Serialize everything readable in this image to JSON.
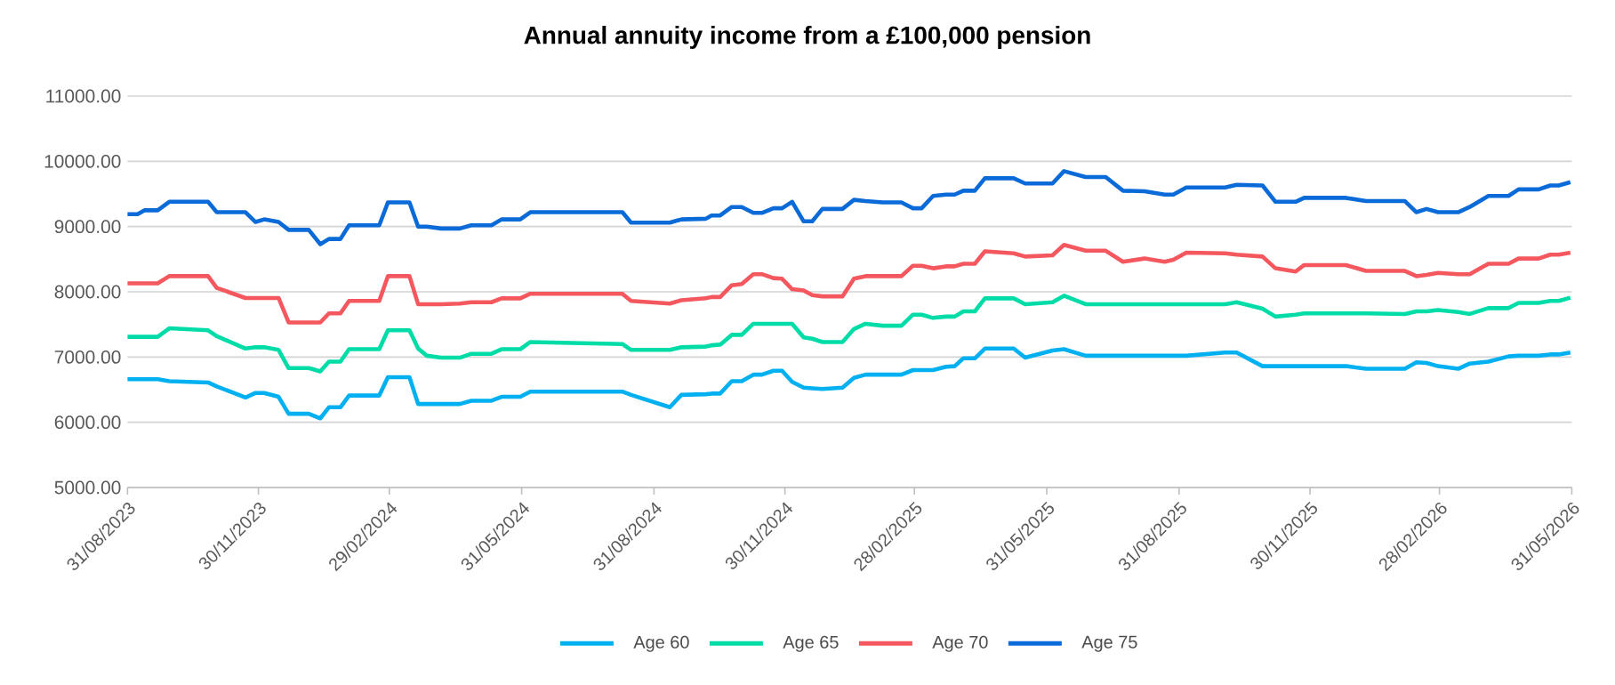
{
  "chart_data": {
    "type": "line",
    "title": "Annual annuity income from a £100,000 pension",
    "x": [
      "2023-08-31",
      "2023-09-07",
      "2023-09-12",
      "2023-09-21",
      "2023-09-29",
      "2023-10-26",
      "2023-11-01",
      "2023-11-21",
      "2023-11-28",
      "2023-12-04",
      "2023-12-14",
      "2023-12-21",
      "2024-01-04",
      "2024-01-12",
      "2024-01-18",
      "2024-01-26",
      "2024-02-01",
      "2024-02-22",
      "2024-02-28",
      "2024-03-14",
      "2024-03-20",
      "2024-03-26",
      "2024-04-05",
      "2024-04-18",
      "2024-04-26",
      "2024-05-10",
      "2024-05-17",
      "2024-05-30",
      "2024-06-06",
      "2024-08-09",
      "2024-08-15",
      "2024-09-11",
      "2024-09-19",
      "2024-10-06",
      "2024-10-10",
      "2024-10-16",
      "2024-10-24",
      "2024-10-31",
      "2024-11-08",
      "2024-11-14",
      "2024-11-22",
      "2024-11-28",
      "2024-12-05",
      "2024-12-13",
      "2024-12-19",
      "2024-12-26",
      "2025-01-09",
      "2025-01-17",
      "2025-01-25",
      "2025-02-06",
      "2025-02-19",
      "2025-02-27",
      "2025-03-05",
      "2025-03-13",
      "2025-03-22",
      "2025-03-28",
      "2025-04-03",
      "2025-04-11",
      "2025-04-18",
      "2025-05-08",
      "2025-05-16",
      "2025-06-04",
      "2025-06-12",
      "2025-06-27",
      "2025-07-11",
      "2025-07-23",
      "2025-08-07",
      "2025-08-21",
      "2025-08-27",
      "2025-09-05",
      "2025-10-02",
      "2025-10-10",
      "2025-10-28",
      "2025-11-06",
      "2025-11-20",
      "2025-11-26",
      "2025-12-25",
      "2026-01-08",
      "2026-02-04",
      "2026-02-12",
      "2026-02-19",
      "2026-02-27",
      "2026-03-13",
      "2026-03-21",
      "2026-04-03",
      "2026-04-17",
      "2026-04-24",
      "2026-05-08",
      "2026-05-16",
      "2026-05-22",
      "2026-05-30"
    ],
    "series": [
      {
        "name": "Age 60",
        "color": "#00b0f0",
        "values": [
          6660,
          6660,
          6660,
          6660,
          6630,
          6610,
          6550,
          6380,
          6450,
          6450,
          6390,
          6130,
          6130,
          6060,
          6230,
          6230,
          6410,
          6410,
          6690,
          6690,
          6280,
          6280,
          6280,
          6280,
          6330,
          6330,
          6390,
          6390,
          6470,
          6470,
          6420,
          6230,
          6420,
          6430,
          6440,
          6440,
          6630,
          6630,
          6730,
          6730,
          6790,
          6790,
          6620,
          6530,
          6520,
          6510,
          6530,
          6680,
          6730,
          6730,
          6730,
          6800,
          6800,
          6800,
          6850,
          6860,
          6980,
          6980,
          7130,
          7130,
          6990,
          7100,
          7120,
          7020,
          7020,
          7020,
          7020,
          7020,
          7020,
          7020,
          7070,
          7070,
          6860,
          6860,
          6860,
          6860,
          6860,
          6820,
          6820,
          6920,
          6910,
          6860,
          6820,
          6900,
          6930,
          7010,
          7020,
          7020,
          7040,
          7040,
          7070
        ]
      },
      {
        "name": "Age 65",
        "color": "#00dca8",
        "values": [
          7310,
          7310,
          7310,
          7310,
          7440,
          7410,
          7320,
          7130,
          7150,
          7150,
          7110,
          6830,
          6830,
          6780,
          6930,
          6930,
          7120,
          7120,
          7410,
          7410,
          7130,
          7020,
          6990,
          6990,
          7050,
          7050,
          7120,
          7120,
          7230,
          7200,
          7110,
          7110,
          7150,
          7160,
          7180,
          7190,
          7340,
          7340,
          7510,
          7510,
          7510,
          7510,
          7510,
          7300,
          7280,
          7230,
          7230,
          7430,
          7510,
          7480,
          7480,
          7650,
          7650,
          7600,
          7620,
          7620,
          7700,
          7700,
          7900,
          7900,
          7810,
          7840,
          7940,
          7810,
          7810,
          7810,
          7810,
          7810,
          7810,
          7810,
          7810,
          7840,
          7740,
          7620,
          7650,
          7670,
          7670,
          7670,
          7660,
          7700,
          7700,
          7720,
          7690,
          7660,
          7750,
          7750,
          7830,
          7830,
          7860,
          7860,
          7910
        ]
      },
      {
        "name": "Age 70",
        "color": "#f4585e",
        "values": [
          8130,
          8130,
          8130,
          8130,
          8240,
          8240,
          8060,
          7905,
          7905,
          7905,
          7905,
          7530,
          7530,
          7530,
          7670,
          7670,
          7860,
          7860,
          8240,
          8240,
          7810,
          7810,
          7810,
          7820,
          7840,
          7840,
          7900,
          7900,
          7970,
          7970,
          7860,
          7820,
          7870,
          7900,
          7920,
          7920,
          8100,
          8120,
          8270,
          8270,
          8210,
          8200,
          8040,
          8020,
          7950,
          7930,
          7930,
          8200,
          8240,
          8240,
          8240,
          8400,
          8400,
          8360,
          8390,
          8390,
          8430,
          8430,
          8620,
          8590,
          8540,
          8560,
          8720,
          8630,
          8630,
          8460,
          8510,
          8460,
          8490,
          8600,
          8590,
          8570,
          8540,
          8360,
          8310,
          8410,
          8410,
          8320,
          8320,
          8240,
          8260,
          8290,
          8270,
          8270,
          8430,
          8430,
          8510,
          8510,
          8570,
          8570,
          8600
        ]
      },
      {
        "name": "Age 75",
        "color": "#0a6ad8",
        "values": [
          9190,
          9190,
          9250,
          9250,
          9380,
          9380,
          9220,
          9220,
          9070,
          9110,
          9070,
          8950,
          8950,
          8730,
          8810,
          8810,
          9020,
          9020,
          9370,
          9370,
          9000,
          9000,
          8970,
          8970,
          9020,
          9020,
          9110,
          9110,
          9220,
          9220,
          9060,
          9060,
          9110,
          9120,
          9170,
          9170,
          9300,
          9300,
          9210,
          9210,
          9280,
          9280,
          9380,
          9080,
          9080,
          9270,
          9270,
          9410,
          9390,
          9370,
          9370,
          9280,
          9280,
          9470,
          9490,
          9490,
          9550,
          9550,
          9740,
          9740,
          9660,
          9660,
          9850,
          9760,
          9760,
          9550,
          9540,
          9490,
          9490,
          9600,
          9600,
          9640,
          9630,
          9380,
          9380,
          9440,
          9440,
          9390,
          9390,
          9220,
          9270,
          9220,
          9220,
          9300,
          9470,
          9470,
          9570,
          9570,
          9630,
          9630,
          9680
        ]
      }
    ],
    "xlim": [
      "2023-08-31",
      "2026-05-31"
    ],
    "xticks": [
      {
        "value": "2023-08-31",
        "label": "31/08/2023"
      },
      {
        "value": "2023-11-30",
        "label": "30/11/2023"
      },
      {
        "value": "2024-02-29",
        "label": "29/02/2024"
      },
      {
        "value": "2024-05-31",
        "label": "31/05/2024"
      },
      {
        "value": "2024-08-31",
        "label": "31/08/2024"
      },
      {
        "value": "2024-11-30",
        "label": "30/11/2024"
      },
      {
        "value": "2025-02-28",
        "label": "28/02/2025"
      },
      {
        "value": "2025-05-31",
        "label": "31/05/2025"
      },
      {
        "value": "2025-08-31",
        "label": "31/08/2025"
      },
      {
        "value": "2025-11-30",
        "label": "30/11/2025"
      },
      {
        "value": "2026-02-28",
        "label": "28/02/2026"
      },
      {
        "value": "2026-05-31",
        "label": "31/05/2026"
      }
    ],
    "ylim": [
      5000,
      11000
    ],
    "yticks": [
      {
        "value": 5000,
        "label": "5000.00"
      },
      {
        "value": 6000,
        "label": "6000.00"
      },
      {
        "value": 7000,
        "label": "7000.00"
      },
      {
        "value": 8000,
        "label": "8000.00"
      },
      {
        "value": 9000,
        "label": "9000.00"
      },
      {
        "value": 10000,
        "label": "10000.00"
      },
      {
        "value": 11000,
        "label": "11000.00"
      }
    ],
    "grid": "y",
    "legend": "bottom",
    "marker": "none",
    "line_style": "solid"
  }
}
